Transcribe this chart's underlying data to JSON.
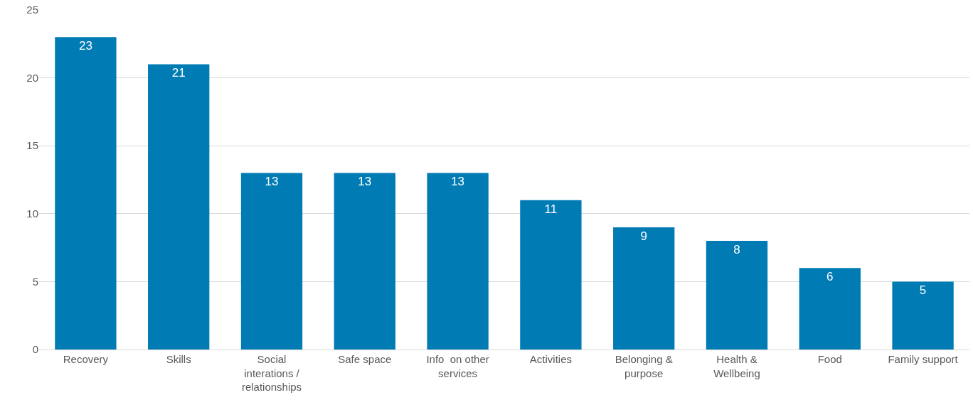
{
  "chart_data": {
    "type": "bar",
    "categories": [
      "Recovery",
      "Skills",
      "Social interations / relationships",
      "Safe space",
      "Info  on other services",
      "Activities",
      "Belonging & purpose",
      "Health & Wellbeing",
      "Food",
      "Family support"
    ],
    "values": [
      23,
      21,
      13,
      13,
      13,
      11,
      9,
      8,
      6,
      5
    ],
    "color": "#007bb4",
    "ylim": [
      0,
      25
    ],
    "yticks": [
      0,
      5,
      10,
      15,
      20,
      25
    ],
    "grid": "y",
    "data_labels": true
  }
}
